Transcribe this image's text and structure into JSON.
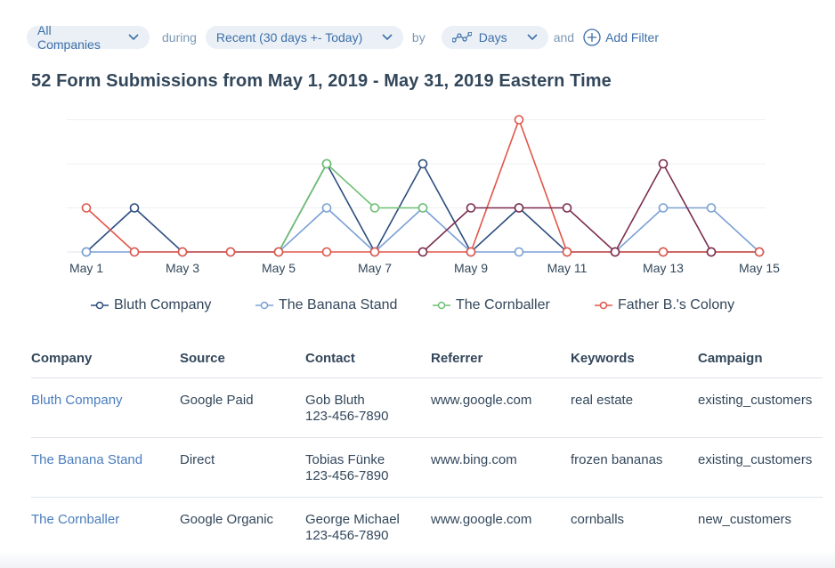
{
  "filters": {
    "company": "All Companies",
    "during_label": "during",
    "range": "Recent (30 days +- Today)",
    "by_label": "by",
    "interval": "Days",
    "and_label": "and",
    "add_filter": "Add Filter"
  },
  "report_title": "52 Form Submissions from May 1, 2019 - May 31, 2019 Eastern Time",
  "colors": {
    "bluth": "#2b4c7e",
    "banana": "#7aa0d4",
    "cornballer": "#6dbf72",
    "father_b": "#e0564a",
    "purple": "#7b2d4f"
  },
  "chart_data": {
    "type": "line",
    "x": [
      "May 1",
      "May 2",
      "May 3",
      "May 4",
      "May 5",
      "May 6",
      "May 7",
      "May 8",
      "May 9",
      "May 10",
      "May 11",
      "May 12",
      "May 13",
      "May 14",
      "May 15"
    ],
    "x_tick_labels": [
      "May 1",
      "May 3",
      "May 5",
      "May 7",
      "May 9",
      "May 11",
      "May 13",
      "May 15"
    ],
    "ylim": [
      0,
      3
    ],
    "grid": true,
    "legend": "bottom",
    "series": [
      {
        "name": "Bluth Company",
        "color": "#2b4c7e",
        "values": [
          0,
          1,
          0,
          0,
          0,
          2,
          0,
          2,
          0,
          1,
          0,
          0,
          0,
          0,
          0
        ]
      },
      {
        "name": "The Banana Stand",
        "color": "#7aa0d4",
        "values": [
          0,
          0,
          0,
          0,
          0,
          1,
          0,
          1,
          0,
          0,
          0,
          0,
          1,
          1,
          0
        ]
      },
      {
        "name": "The Cornballer",
        "color": "#6dbf72",
        "values": [
          null,
          null,
          null,
          null,
          0,
          2,
          1,
          1,
          null,
          null,
          null,
          null,
          null,
          null,
          null
        ]
      },
      {
        "name": "Father B.'s Colony",
        "color": "#e0564a",
        "values": [
          1,
          0,
          0,
          0,
          0,
          0,
          0,
          0,
          0,
          3,
          0,
          0,
          0,
          0,
          0
        ]
      },
      {
        "name": "",
        "color": "#7b2d4f",
        "values": [
          null,
          null,
          null,
          null,
          null,
          null,
          null,
          0,
          1,
          1,
          1,
          0,
          2,
          0,
          null
        ]
      }
    ]
  },
  "legend": [
    {
      "label": "Bluth Company",
      "color": "#2b4c7e"
    },
    {
      "label": "The Banana Stand",
      "color": "#7aa0d4"
    },
    {
      "label": "The Cornballer",
      "color": "#6dbf72"
    },
    {
      "label": "Father B.'s Colony",
      "color": "#e0564a"
    }
  ],
  "table": {
    "headers": [
      "Company",
      "Source",
      "Contact",
      "Referrer",
      "Keywords",
      "Campaign"
    ],
    "rows": [
      {
        "company": "Bluth Company",
        "source": "Google Paid",
        "contact_name": "Gob Bluth",
        "contact_phone": "123-456-7890",
        "referrer": "www.google.com",
        "keywords": "real estate",
        "campaign": "existing_customers"
      },
      {
        "company": "The Banana Stand",
        "source": "Direct",
        "contact_name": "Tobias Fünke",
        "contact_phone": "123-456-7890",
        "referrer": "www.bing.com",
        "keywords": "frozen bananas",
        "campaign": "existing_customers"
      },
      {
        "company": "The Cornballer",
        "source": "Google Organic",
        "contact_name": "George Michael",
        "contact_phone": "123-456-7890",
        "referrer": "www.google.com",
        "keywords": "cornballs",
        "campaign": "new_customers"
      }
    ]
  }
}
